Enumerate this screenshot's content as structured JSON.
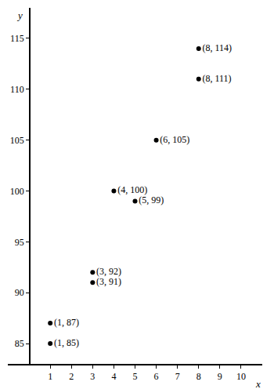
{
  "chart_data": {
    "type": "scatter",
    "x_label": "x",
    "y_label": "y",
    "x": [
      1,
      1,
      3,
      3,
      4,
      5,
      6,
      8,
      8
    ],
    "values": [
      85,
      87,
      91,
      92,
      100,
      99,
      105,
      111,
      114
    ],
    "value_labels": [
      "(1, 85)",
      "(1, 87)",
      "(3, 91)",
      "(3, 92)",
      "(4, 100)",
      "(5, 99)",
      "(6, 105)",
      "(8, 111)",
      "(8, 114)"
    ],
    "data_labels": true,
    "color": "#000000",
    "marker": "circle",
    "xlim": [
      -1,
      11
    ],
    "xticks": [
      1,
      2,
      3,
      4,
      5,
      6,
      7,
      8,
      9,
      10
    ],
    "ylim": [
      83,
      118
    ],
    "yticks": [
      85,
      90,
      95,
      100,
      105,
      110,
      115
    ],
    "grid": false
  }
}
